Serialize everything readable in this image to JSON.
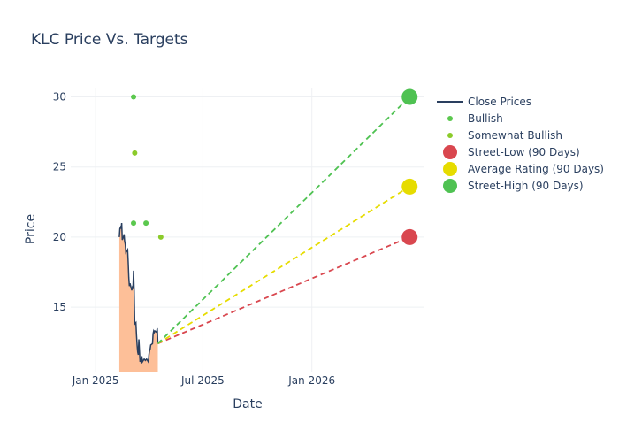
{
  "chart_data": {
    "type": "line",
    "title": "KLC Price Vs. Targets",
    "xlabel": "Date",
    "ylabel": "Price",
    "xlim": [
      "2024-11-20",
      "2026-07-10"
    ],
    "ylim": [
      10.4,
      30.6
    ],
    "x_ticks": [
      {
        "date": "2025-01-01",
        "label": "Jan 2025"
      },
      {
        "date": "2025-07-01",
        "label": "Jul 2025"
      },
      {
        "date": "2026-01-01",
        "label": "Jan 2026"
      }
    ],
    "y_ticks": [
      15,
      20,
      25,
      30
    ],
    "grid": true,
    "legend_position": "right",
    "colors": {
      "close": "#2a3f5f",
      "close_fill": "#fdbf98",
      "bullish": "#5bc84e",
      "somewhat_bullish": "#8bcb2a",
      "street_low": "#d9474f",
      "average": "#e6dc00",
      "street_high": "#4fc252",
      "grid": "#eef0f3",
      "text": "#2a3f5f"
    },
    "series": [
      {
        "name": "Close Prices",
        "kind": "line",
        "points": [
          [
            "2025-02-10",
            20.0
          ],
          [
            "2025-02-11",
            20.6
          ],
          [
            "2025-02-12",
            20.7
          ],
          [
            "2025-02-13",
            20.6
          ],
          [
            "2025-02-14",
            21.0
          ],
          [
            "2025-02-15",
            19.8
          ],
          [
            "2025-02-17",
            20.0
          ],
          [
            "2025-02-18",
            20.2
          ],
          [
            "2025-02-19",
            19.7
          ],
          [
            "2025-02-20",
            19.5
          ],
          [
            "2025-02-21",
            18.9
          ],
          [
            "2025-02-24",
            19.1
          ],
          [
            "2025-02-25",
            18.2
          ],
          [
            "2025-02-26",
            17.1
          ],
          [
            "2025-02-27",
            16.5
          ],
          [
            "2025-02-28",
            16.7
          ],
          [
            "2025-03-03",
            16.2
          ],
          [
            "2025-03-04",
            16.4
          ],
          [
            "2025-03-05",
            16.3
          ],
          [
            "2025-03-06",
            17.6
          ],
          [
            "2025-03-07",
            16.2
          ],
          [
            "2025-03-08",
            13.8
          ],
          [
            "2025-03-10",
            13.9
          ],
          [
            "2025-03-11",
            13.0
          ],
          [
            "2025-03-12",
            12.3
          ],
          [
            "2025-03-13",
            11.8
          ],
          [
            "2025-03-14",
            11.6
          ],
          [
            "2025-03-15",
            12.7
          ],
          [
            "2025-03-17",
            11.1
          ],
          [
            "2025-03-18",
            11.4
          ],
          [
            "2025-03-19",
            11.0
          ],
          [
            "2025-03-20",
            11.5
          ],
          [
            "2025-03-21",
            11.1
          ],
          [
            "2025-03-24",
            11.3
          ],
          [
            "2025-03-26",
            11.2
          ],
          [
            "2025-03-28",
            11.3
          ],
          [
            "2025-03-31",
            11.1
          ],
          [
            "2025-04-01",
            11.6
          ],
          [
            "2025-04-02",
            11.9
          ],
          [
            "2025-04-03",
            12.0
          ],
          [
            "2025-04-04",
            12.3
          ],
          [
            "2025-04-07",
            12.4
          ],
          [
            "2025-04-08",
            13.1
          ],
          [
            "2025-04-09",
            13.3
          ],
          [
            "2025-04-10",
            13.2
          ],
          [
            "2025-04-11",
            13.3
          ],
          [
            "2025-04-14",
            13.2
          ],
          [
            "2025-04-15",
            13.5
          ],
          [
            "2025-04-16",
            12.4
          ]
        ]
      },
      {
        "name": "Bullish",
        "kind": "markers",
        "points": [
          [
            "2025-03-06",
            30.0
          ],
          [
            "2025-03-06",
            21.0
          ],
          [
            "2025-03-27",
            21.0
          ]
        ]
      },
      {
        "name": "Somewhat Bullish",
        "kind": "markers",
        "points": [
          [
            "2025-03-08",
            26.0
          ],
          [
            "2025-04-21",
            20.0
          ]
        ]
      },
      {
        "name": "Street-Low (90 Days)",
        "kind": "target",
        "points": [
          [
            "2025-04-16",
            12.4
          ],
          [
            "2026-06-15",
            20.0
          ]
        ]
      },
      {
        "name": "Average Rating (90 Days)",
        "kind": "target",
        "points": [
          [
            "2025-04-16",
            12.4
          ],
          [
            "2026-06-15",
            23.6
          ]
        ]
      },
      {
        "name": "Street-High (90 Days)",
        "kind": "target",
        "points": [
          [
            "2025-04-16",
            12.4
          ],
          [
            "2026-06-15",
            30.0
          ]
        ]
      }
    ]
  }
}
